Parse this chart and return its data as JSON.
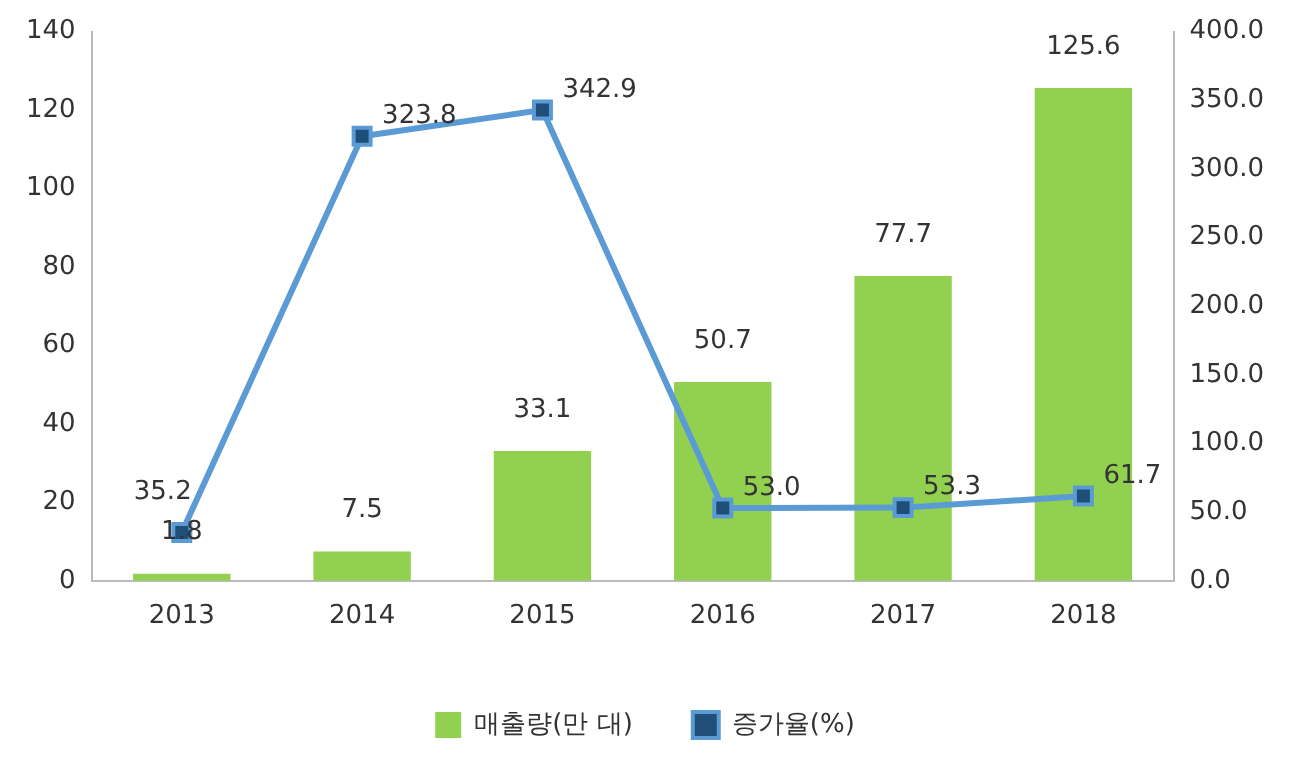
{
  "chart_data": {
    "type": "bar",
    "categories": [
      "2013",
      "2014",
      "2015",
      "2016",
      "2017",
      "2018"
    ],
    "series": [
      {
        "name": "매출량(만 대)",
        "color": "#92d050",
        "values": [
          1.8,
          7.5,
          33.1,
          50.7,
          77.7,
          125.6
        ],
        "value_labels": [
          "1.8",
          "7.5",
          "33.1",
          "50.7",
          "77.7",
          "125.6"
        ]
      },
      {
        "name": "증가율(%)",
        "type": "line",
        "axis": "y2",
        "color": "#5b9bd5",
        "values": [
          35.2,
          323.8,
          342.9,
          53.0,
          53.3,
          61.7
        ],
        "value_labels": [
          "35.2",
          "323.8",
          "342.9",
          "53.0",
          "53.3",
          "61.7"
        ]
      }
    ],
    "ylim": [
      0,
      140
    ],
    "yticks": [
      0,
      20,
      40,
      60,
      80,
      100,
      120,
      140
    ],
    "y2lim": [
      0,
      400
    ],
    "y2ticks": [
      {
        "value": 0,
        "label": "0.0"
      },
      {
        "value": 50,
        "label": "50.0"
      },
      {
        "value": 100,
        "label": "100.0"
      },
      {
        "value": 150,
        "label": "150.0"
      },
      {
        "value": 200,
        "label": "200.0"
      },
      {
        "value": 250,
        "label": "250.0"
      },
      {
        "value": 300,
        "label": "300.0"
      },
      {
        "value": 350,
        "label": "350.0"
      },
      {
        "value": 400,
        "label": "400.0"
      }
    ],
    "marker": "square",
    "line_style": "solid",
    "grid": false,
    "legend": "bottom"
  }
}
